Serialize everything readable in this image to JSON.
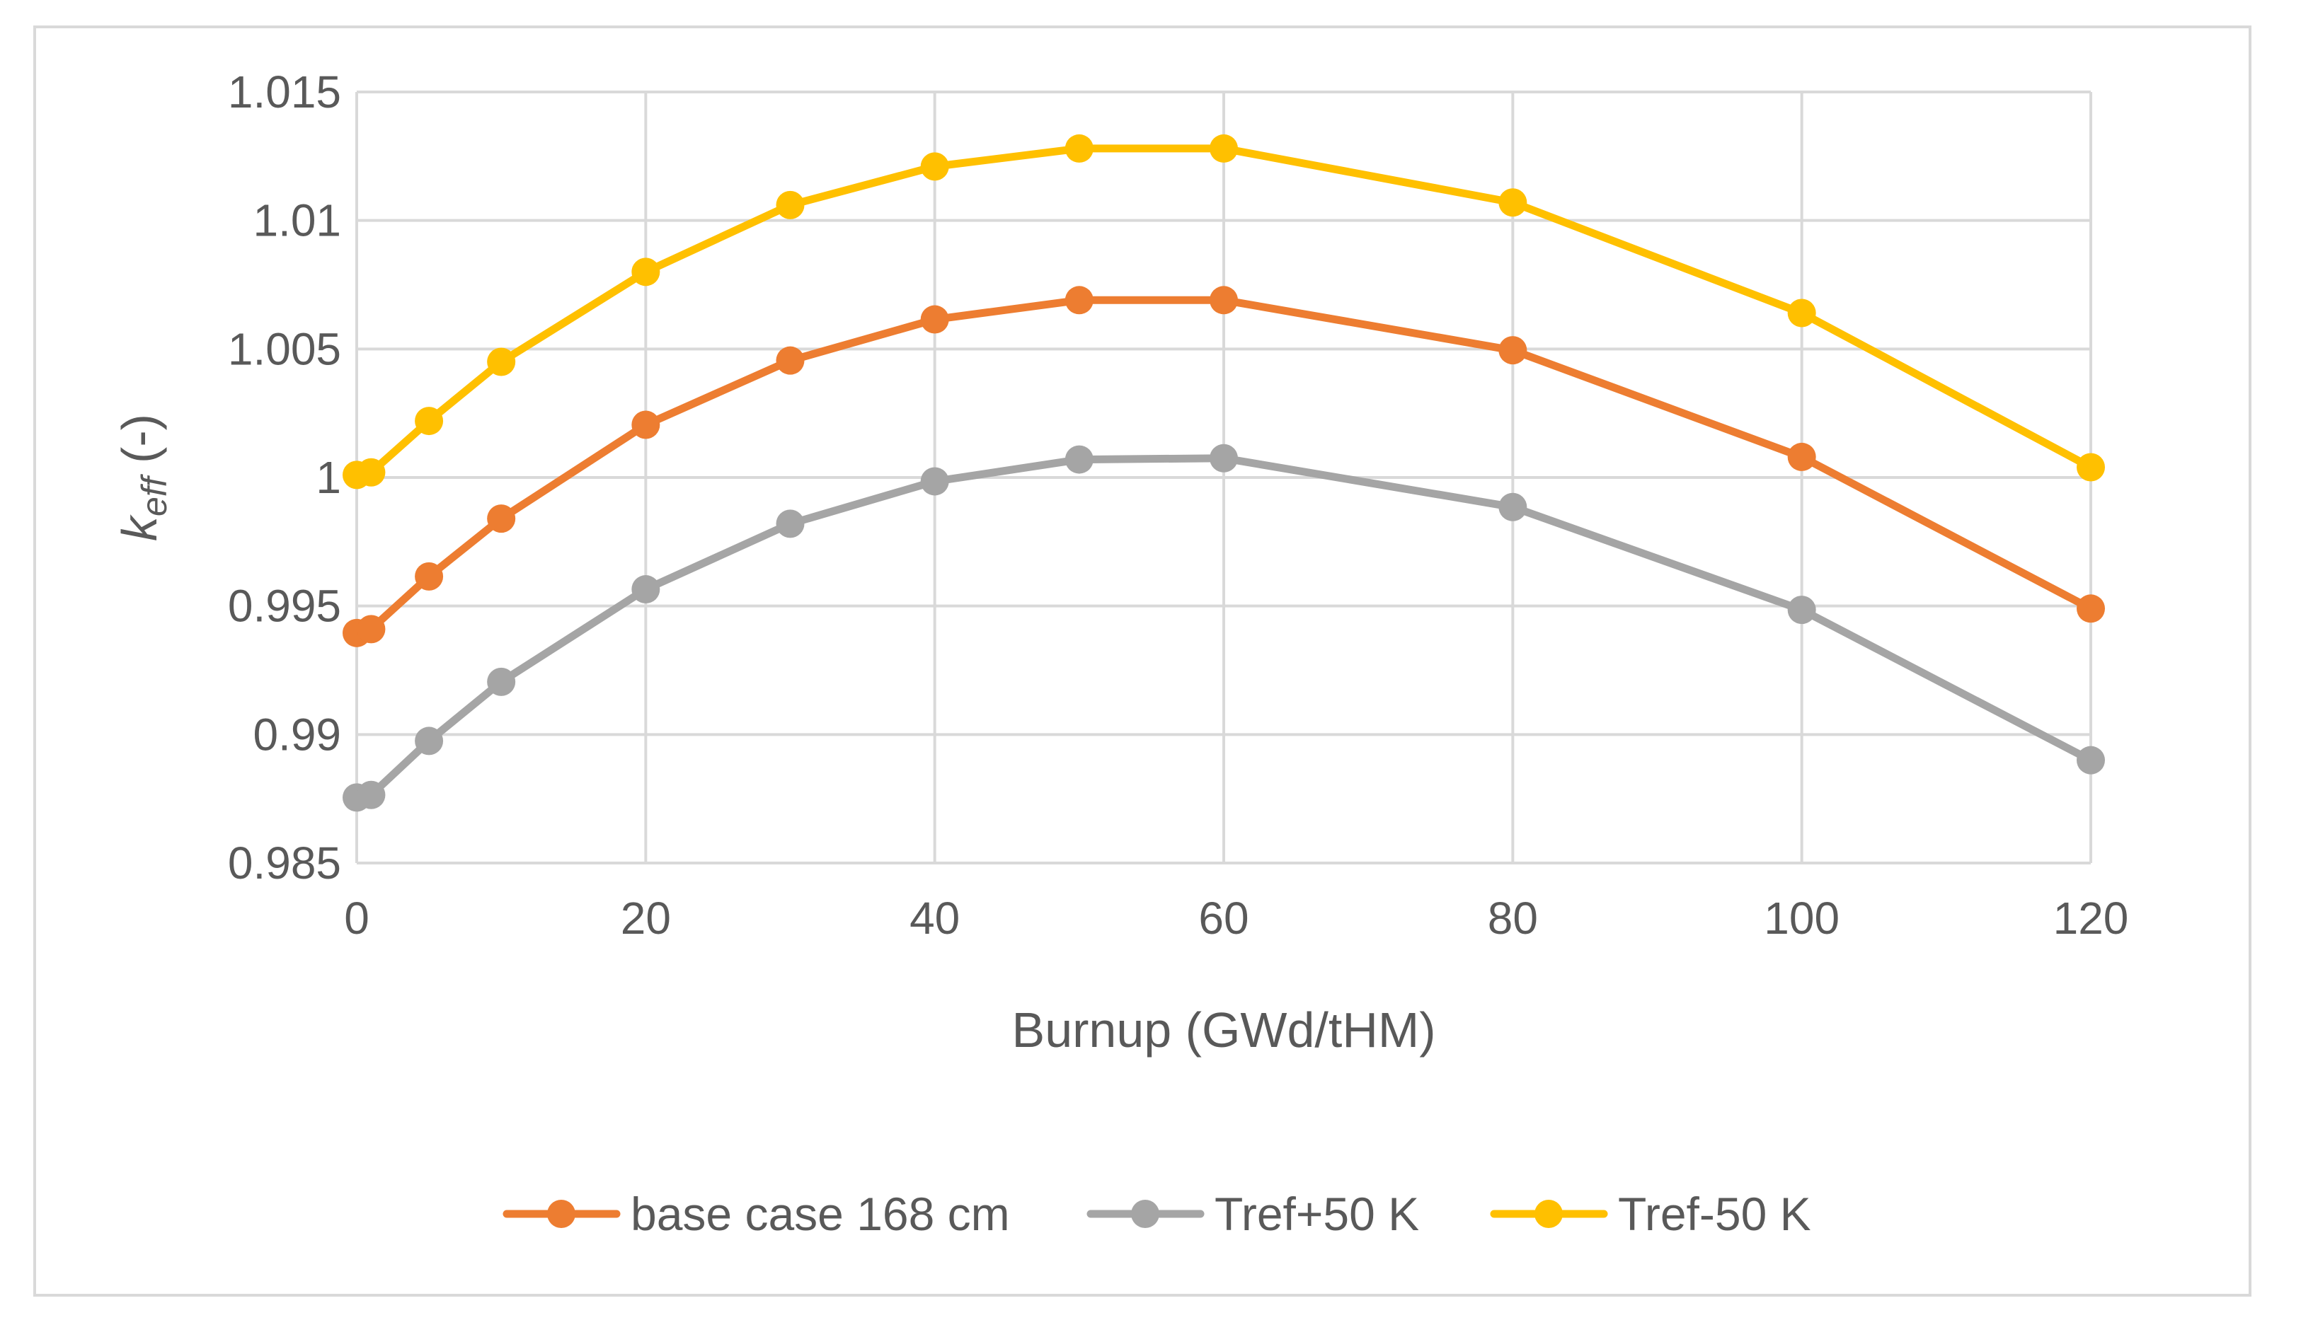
{
  "chart_data": {
    "type": "line",
    "title": "",
    "xlabel": "Burnup (GWd/tHM)",
    "ylabel": {
      "base": "k",
      "subscript": "eff",
      "suffix": " (-)"
    },
    "xlim": [
      0,
      120
    ],
    "ylim": [
      0.985,
      1.015
    ],
    "xticks": [
      0,
      20,
      40,
      60,
      80,
      100,
      120
    ],
    "xtick_labels": [
      "0",
      "20",
      "40",
      "60",
      "80",
      "100",
      "120"
    ],
    "yticks": [
      0.985,
      0.99,
      0.995,
      1.0,
      1.005,
      1.01,
      1.015
    ],
    "ytick_labels": [
      "0.985",
      "0.99",
      "0.995",
      "1",
      "1.005",
      "1.01",
      "1.015"
    ],
    "grid": true,
    "legend_position": "bottom",
    "x": [
      0,
      1,
      5,
      10,
      20,
      30,
      40,
      50,
      60,
      80,
      100,
      120
    ],
    "series": [
      {
        "name": "base case 168 cm",
        "color": "#ED7D31",
        "values": [
          0.99395,
          0.9941,
          0.99615,
          0.9984,
          1.00205,
          1.00455,
          1.00615,
          1.0069,
          1.0069,
          1.00495,
          1.0008,
          0.9949
        ]
      },
      {
        "name": "Tref+50 K",
        "color": "#A5A5A5",
        "values": [
          0.98755,
          0.98765,
          0.98975,
          0.99205,
          0.99565,
          0.9982,
          0.99985,
          1.0007,
          1.00075,
          0.99885,
          0.99485,
          0.989
        ]
      },
      {
        "name": "Tref-50 K",
        "color": "#FFC000",
        "values": [
          1.0001,
          1.0002,
          1.0022,
          1.0045,
          1.008,
          1.0106,
          1.0121,
          1.0128,
          1.0128,
          1.0107,
          1.0064,
          1.0004
        ]
      }
    ]
  }
}
